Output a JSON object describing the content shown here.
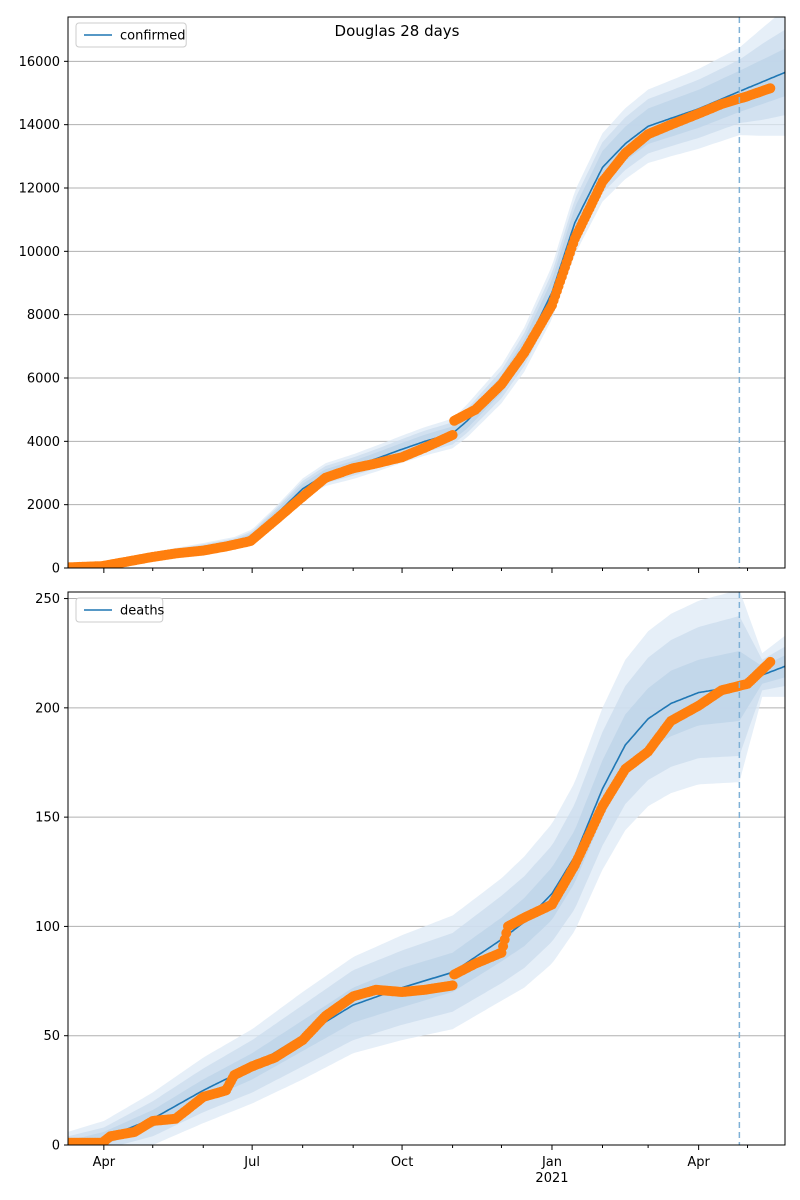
{
  "colors": {
    "model": "#1f77b4",
    "observed": "#ff7f0e",
    "band_inner": "#bcd3e8",
    "band_mid": "#cbdcee",
    "band_outer": "#dde9f5",
    "grid": "#b0b0b0",
    "forecast_line": "#7fb1d6"
  },
  "chart_data": [
    {
      "type": "line",
      "title": "Douglas 28 days",
      "legend": "top-left",
      "grid": "horizontal",
      "xlim": [
        "2020-03-10",
        "2021-05-24"
      ],
      "ylim": [
        0,
        17400
      ],
      "yticks": [
        0,
        2000,
        4000,
        6000,
        8000,
        10000,
        12000,
        14000,
        16000
      ],
      "forecast_start": "2021-04-26",
      "series": [
        {
          "name": "confirmed",
          "kind": "model",
          "x": [
            "2020-03-10",
            "2020-04-01",
            "2020-05-01",
            "2020-06-01",
            "2020-06-20",
            "2020-07-01",
            "2020-07-15",
            "2020-08-01",
            "2020-08-15",
            "2020-09-01",
            "2020-09-15",
            "2020-10-01",
            "2020-10-15",
            "2020-11-01",
            "2020-11-10",
            "2020-12-01",
            "2020-12-15",
            "2021-01-01",
            "2021-01-15",
            "2021-02-01",
            "2021-02-15",
            "2021-03-01",
            "2021-03-15",
            "2021-04-01",
            "2021-04-26",
            "2021-05-10",
            "2021-05-24"
          ],
          "y": [
            0,
            60,
            400,
            650,
            800,
            1000,
            1650,
            2500,
            2950,
            3200,
            3450,
            3750,
            4000,
            4250,
            4650,
            5800,
            6900,
            8700,
            10900,
            12650,
            13400,
            13950,
            14200,
            14500,
            15050,
            15350,
            15650
          ],
          "band_half_width": [
            [
              0,
              0,
              0
            ],
            [
              20,
              40,
              60
            ],
            [
              40,
              70,
              100
            ],
            [
              60,
              100,
              140
            ],
            [
              80,
              130,
              180
            ],
            [
              100,
              160,
              220
            ],
            [
              130,
              200,
              260
            ],
            [
              160,
              250,
              330
            ],
            [
              170,
              270,
              360
            ],
            [
              180,
              290,
              390
            ],
            [
              190,
              300,
              410
            ],
            [
              200,
              320,
              430
            ],
            [
              210,
              340,
              450
            ],
            [
              220,
              350,
              470
            ],
            [
              240,
              380,
              520
            ],
            [
              280,
              440,
              600
            ],
            [
              330,
              520,
              700
            ],
            [
              400,
              620,
              840
            ],
            [
              480,
              740,
              1000
            ],
            [
              520,
              800,
              1080
            ],
            [
              540,
              830,
              1120
            ],
            [
              560,
              860,
              1160
            ],
            [
              580,
              880,
              1200
            ],
            [
              600,
              920,
              1260
            ],
            [
              650,
              1000,
              1380
            ],
            [
              700,
              1200,
              1700
            ],
            [
              750,
              1350,
              2000
            ]
          ]
        },
        {
          "name": "",
          "kind": "observed",
          "x": [
            "2020-03-10",
            "2020-03-31",
            "2020-04-15",
            "2020-05-01",
            "2020-05-15",
            "2020-06-01",
            "2020-06-15",
            "2020-06-30",
            "2020-07-15",
            "2020-08-01",
            "2020-08-15",
            "2020-09-01",
            "2020-09-15",
            "2020-10-01",
            "2020-10-15",
            "2020-11-01",
            "2020-11-02",
            "2020-11-15",
            "2020-12-01",
            "2020-12-15",
            "2021-01-01",
            "2021-01-15",
            "2021-02-01",
            "2021-02-15",
            "2021-03-01",
            "2021-03-15",
            "2021-04-01",
            "2021-04-15",
            "2021-05-01",
            "2021-05-15"
          ],
          "y": [
            20,
            60,
            200,
            350,
            460,
            550,
            680,
            850,
            1500,
            2250,
            2850,
            3150,
            3300,
            3500,
            3800,
            4200,
            4650,
            5000,
            5800,
            6800,
            8300,
            10400,
            12200,
            13100,
            13700,
            14000,
            14350,
            14650,
            14900,
            15150
          ]
        }
      ]
    },
    {
      "type": "line",
      "title": "",
      "legend": "top-left",
      "grid": "horizontal",
      "xlim": [
        "2020-03-10",
        "2021-05-24"
      ],
      "ylim": [
        0,
        253
      ],
      "yticks": [
        0,
        50,
        100,
        150,
        200,
        250
      ],
      "forecast_start": "2021-04-26",
      "x_ticks": [
        "Apr",
        "Jul",
        "Oct",
        "Jan",
        "Apr"
      ],
      "x_year_label": "2021",
      "series": [
        {
          "name": "deaths",
          "kind": "model",
          "x": [
            "2020-03-10",
            "2020-04-01",
            "2020-05-01",
            "2020-06-01",
            "2020-07-01",
            "2020-08-01",
            "2020-09-01",
            "2020-10-01",
            "2020-11-01",
            "2020-12-01",
            "2020-12-15",
            "2021-01-01",
            "2021-01-15",
            "2021-02-01",
            "2021-02-15",
            "2021-03-01",
            "2021-03-15",
            "2021-04-01",
            "2021-04-26",
            "2021-05-10",
            "2021-05-24"
          ],
          "y": [
            0,
            3,
            12,
            25,
            36,
            50,
            64,
            72,
            79,
            94,
            102,
            115,
            132,
            163,
            183,
            195,
            202,
            207,
            210,
            215,
            219
          ],
          "band_half_width": [
            [
              2,
              4,
              6
            ],
            [
              3,
              5,
              8
            ],
            [
              4,
              8,
              12
            ],
            [
              5,
              10,
              15
            ],
            [
              6,
              12,
              17
            ],
            [
              7,
              14,
              20
            ],
            [
              8,
              16,
              22
            ],
            [
              9,
              17,
              24
            ],
            [
              9,
              18,
              26
            ],
            [
              10,
              20,
              28
            ],
            [
              11,
              21,
              30
            ],
            [
              12,
              22,
              32
            ],
            [
              12,
              24,
              34
            ],
            [
              13,
              26,
              37
            ],
            [
              14,
              27,
              39
            ],
            [
              14,
              28,
              40
            ],
            [
              15,
              29,
              41
            ],
            [
              15,
              30,
              42
            ],
            [
              16,
              32,
              44
            ],
            [
              4,
              7,
              10
            ],
            [
              5,
              9,
              14
            ]
          ]
        },
        {
          "name": "",
          "kind": "observed",
          "x": [
            "2020-03-10",
            "2020-03-31",
            "2020-04-05",
            "2020-04-20",
            "2020-05-01",
            "2020-05-15",
            "2020-06-01",
            "2020-06-15",
            "2020-06-20",
            "2020-07-01",
            "2020-07-15",
            "2020-08-01",
            "2020-08-15",
            "2020-09-01",
            "2020-09-15",
            "2020-10-01",
            "2020-10-15",
            "2020-11-01",
            "2020-11-02",
            "2020-11-15",
            "2020-12-01",
            "2020-12-05",
            "2020-12-15",
            "2021-01-01",
            "2021-01-15",
            "2021-02-01",
            "2021-02-15",
            "2021-03-01",
            "2021-03-15",
            "2021-04-01",
            "2021-04-15",
            "2021-05-01",
            "2021-05-15"
          ],
          "y": [
            1,
            1,
            4,
            6,
            11,
            12,
            22,
            25,
            32,
            36,
            40,
            48,
            59,
            68,
            71,
            70,
            71,
            73,
            78,
            83,
            88,
            100,
            104,
            110,
            128,
            155,
            172,
            180,
            194,
            201,
            208,
            211,
            221
          ]
        }
      ]
    }
  ]
}
